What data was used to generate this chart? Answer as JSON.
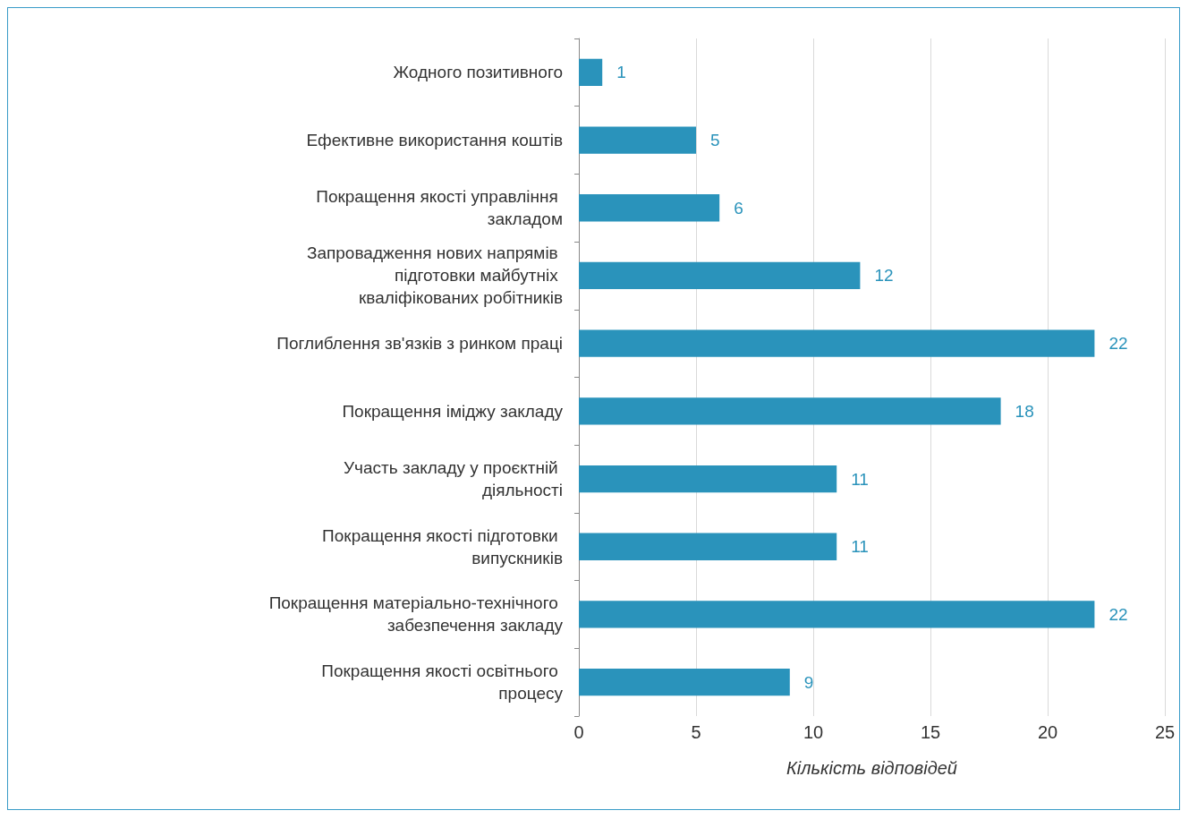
{
  "chart_data": {
    "type": "bar",
    "orientation": "horizontal",
    "xlabel": "Кількість відповідей",
    "categories": [
      "Жодного позитивного",
      "Ефективне використання коштів",
      "Покращення якості управління закладом",
      "Запровадження нових напрямів підготовки майбутніх кваліфікованих робітників",
      "Поглиблення зв'язків з ринком праці",
      "Покращення іміджу закладу",
      "Участь закладу у проєктній діяльності",
      "Покращення якості підготовки випускників",
      "Покращення матеріально-технічного забезпечення закладу",
      "Покращення якості освітнього процесу"
    ],
    "values": [
      1,
      5,
      6,
      12,
      22,
      18,
      11,
      11,
      22,
      9
    ],
    "color": "#2a93bb",
    "xlim": [
      0,
      25
    ],
    "xticks": [
      0,
      5,
      10,
      15,
      20,
      25
    ],
    "grid": "x",
    "data_labels": true
  }
}
